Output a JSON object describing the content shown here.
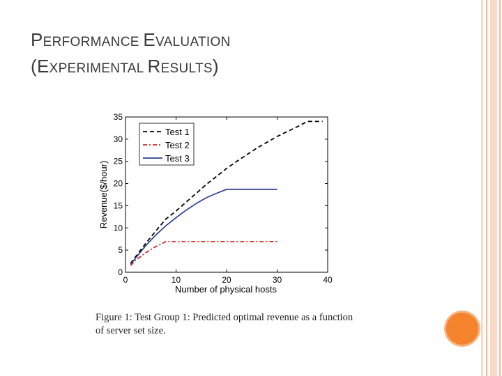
{
  "slide": {
    "title_line1": {
      "p1": "P",
      "w1": "ERFORMANCE ",
      "p2": "E",
      "w2": "VALUATION"
    },
    "title_line2": {
      "p1": "(E",
      "w1": "XPERIMENTAL ",
      "p2": "R",
      "w2": "ESULTS",
      "p3": ")"
    },
    "caption_line1": "Figure 1: Test Group 1: Predicted optimal revenue as a function",
    "caption_line2": "of server set size.",
    "colors": {
      "stripe_light": "#f9d9c8",
      "stripe_mid": "#f3b99c",
      "accent_dot": "#f5822d"
    }
  },
  "chart_data": {
    "type": "line",
    "xlabel": "Number of physical hosts",
    "ylabel": "Revenue($/hour)",
    "xlim": [
      0,
      40
    ],
    "ylim": [
      0,
      35
    ],
    "xticks": [
      0,
      10,
      20,
      30,
      40
    ],
    "yticks": [
      0,
      5,
      10,
      15,
      20,
      25,
      30,
      35
    ],
    "legend_position": "top-left",
    "series": [
      {
        "name": "Test 1",
        "color": "#000000",
        "dash": "6,4",
        "x": [
          1,
          2,
          4,
          6,
          8,
          10,
          12,
          14,
          16,
          18,
          20,
          22,
          24,
          26,
          28,
          30,
          32,
          34,
          36,
          38,
          39
        ],
        "y": [
          2,
          3.5,
          6.5,
          9.3,
          12,
          13.8,
          15.8,
          17.8,
          19.8,
          21.6,
          23.4,
          25,
          26.5,
          28,
          29.3,
          30.6,
          31.7,
          32.8,
          34,
          34,
          34
        ]
      },
      {
        "name": "Test 2",
        "color": "#d62728",
        "dash": "6,3,2,3",
        "x": [
          1,
          2,
          4,
          6,
          8,
          10,
          15,
          20,
          25,
          30
        ],
        "y": [
          1.5,
          2.7,
          4.4,
          5.8,
          6.9,
          6.9,
          6.9,
          6.9,
          6.9,
          6.9
        ]
      },
      {
        "name": "Test 3",
        "color": "#2e3f8f",
        "dash": "",
        "x": [
          1,
          2,
          4,
          6,
          8,
          10,
          12,
          14,
          16,
          18,
          20,
          22,
          25,
          30
        ],
        "y": [
          1.8,
          3.2,
          6,
          8.4,
          10.5,
          12.3,
          14,
          15.5,
          16.8,
          17.8,
          18.7,
          18.7,
          18.7,
          18.7
        ]
      }
    ]
  }
}
